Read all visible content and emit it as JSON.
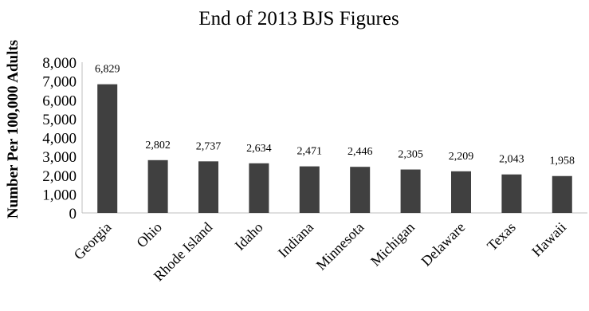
{
  "chart_data": {
    "type": "bar",
    "title": "End of 2013 BJS Figures",
    "xlabel": "",
    "ylabel": "Number Per 100,000 Adults",
    "categories": [
      "Georgia",
      "Ohio",
      "Rhode Island",
      "Idaho",
      "Indiana",
      "Minnesota",
      "Michigan",
      "Delaware",
      "Texas",
      "Hawaii"
    ],
    "values": [
      6829,
      2802,
      2737,
      2634,
      2471,
      2446,
      2305,
      2209,
      2043,
      1958
    ],
    "data_labels": [
      "6,829",
      "2,802",
      "2,737",
      "2,634",
      "2,471",
      "2,446",
      "2,305",
      "2,209",
      "2,043",
      "1,958"
    ],
    "yticks": [
      0,
      1000,
      2000,
      3000,
      4000,
      5000,
      6000,
      7000,
      8000
    ],
    "ytick_labels": [
      "0",
      "1,000",
      "2,000",
      "3,000",
      "4,000",
      "5,000",
      "6,000",
      "7,000",
      "8,000"
    ],
    "ylim": [
      0,
      8000
    ],
    "bar_color": "#404040",
    "grid": false,
    "legend": "none"
  }
}
